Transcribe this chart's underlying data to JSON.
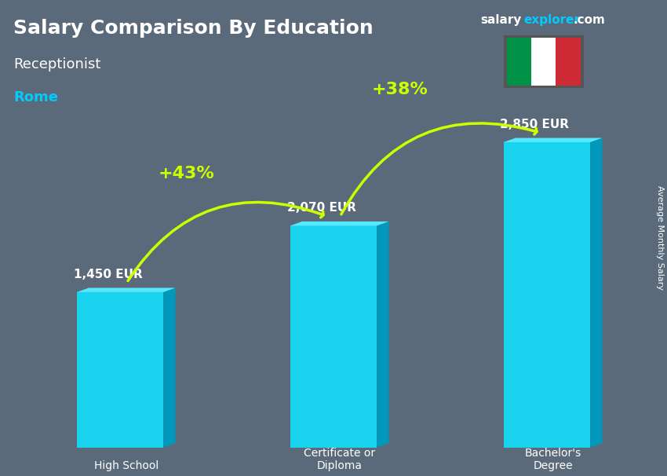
{
  "title": "Salary Comparison By Education",
  "subtitle": "Receptionist",
  "city": "Rome",
  "site_name": "salary",
  "site_name2": "explorer",
  "site_domain": ".com",
  "ylabel": "Average Monthly Salary",
  "categories": [
    "High School",
    "Certificate or\nDiploma",
    "Bachelor's\nDegree"
  ],
  "values": [
    1450,
    2070,
    2850
  ],
  "labels": [
    "1,450 EUR",
    "2,070 EUR",
    "2,850 EUR"
  ],
  "bar_color_top": "#00d4f0",
  "bar_color_mid": "#00aacc",
  "bar_color_bottom": "#008ab0",
  "pct_labels": [
    "+43%",
    "+38%"
  ],
  "bg_color": "#5a6a7a",
  "title_color": "#ffffff",
  "subtitle_color": "#ffffff",
  "city_color": "#00ccff",
  "label_color": "#ffffff",
  "pct_color": "#ccff00",
  "arrow_color": "#88ff00",
  "site_color1": "#ffffff",
  "site_color2": "#00ccff",
  "italian_flag_green": "#009246",
  "italian_flag_white": "#ffffff",
  "italian_flag_red": "#ce2b37",
  "flag_bg": "#555555"
}
